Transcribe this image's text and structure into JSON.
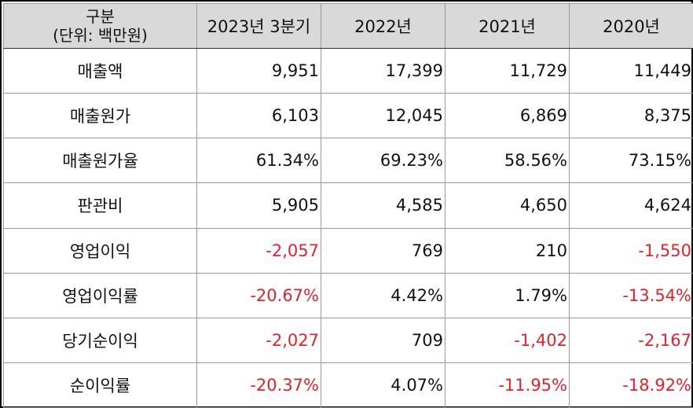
{
  "header": {
    "corner_line1": "구분",
    "corner_line2": "(단위: 백만원)",
    "columns": [
      "2023년 3분기",
      "2022년",
      "2021년",
      "2020년"
    ]
  },
  "rows": [
    {
      "label": "매출액",
      "values": [
        "9,951",
        "17,399",
        "11,729",
        "11,449"
      ],
      "negative": [
        false,
        false,
        false,
        false
      ]
    },
    {
      "label": "매출원가",
      "values": [
        "6,103",
        "12,045",
        "6,869",
        "8,375"
      ],
      "negative": [
        false,
        false,
        false,
        false
      ]
    },
    {
      "label": "매출원가율",
      "values": [
        "61.34%",
        "69.23%",
        "58.56%",
        "73.15%"
      ],
      "negative": [
        false,
        false,
        false,
        false
      ]
    },
    {
      "label": "판관비",
      "values": [
        "5,905",
        "4,585",
        "4,650",
        "4,624"
      ],
      "negative": [
        false,
        false,
        false,
        false
      ]
    },
    {
      "label": "영업이익",
      "values": [
        "-2,057",
        "769",
        "210",
        "-1,550"
      ],
      "negative": [
        true,
        false,
        false,
        true
      ]
    },
    {
      "label": "영업이익률",
      "values": [
        "-20.67%",
        "4.42%",
        "1.79%",
        "-13.54%"
      ],
      "negative": [
        true,
        false,
        false,
        true
      ]
    },
    {
      "label": "당기순이익",
      "values": [
        "-2,027",
        "709",
        "-1,402",
        "-2,167"
      ],
      "negative": [
        true,
        false,
        true,
        true
      ]
    },
    {
      "label": "순이익률",
      "values": [
        "-20.37%",
        "4.07%",
        "-11.95%",
        "-18.92%"
      ],
      "negative": [
        true,
        false,
        true,
        true
      ]
    }
  ],
  "colors": {
    "header_bg": "#d9d9d9",
    "negative_text": "#e8202a",
    "grid_line": "#9a9a9a"
  }
}
